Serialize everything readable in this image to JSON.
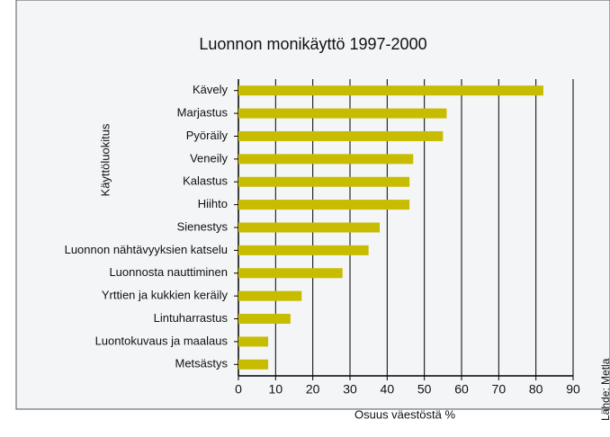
{
  "chart_data": {
    "type": "hbar",
    "title": "Luonnon monikäyttö 1997-2000",
    "x_label": "Osuus väestöstä %",
    "y_label": "Käyttöluokitus",
    "source": "Lähde: Metla",
    "categories": [
      "Kävely",
      "Marjastus",
      "Pyöräily",
      "Veneily",
      "Kalastus",
      "Hiihto",
      "Sienestys",
      "Luonnon nähtävyyksien katselu",
      "Luonnosta nauttiminen",
      "Yrttien ja kukkien keräily",
      "Lintuharrastus",
      "Luontokuvaus ja maalaus",
      "Metsästys"
    ],
    "values": [
      82,
      56,
      55,
      47,
      46,
      46,
      38,
      35,
      28,
      17,
      14,
      8,
      8
    ],
    "color": "#c8bc00",
    "xlim": [
      0,
      90
    ],
    "xticks": [
      0,
      10,
      20,
      30,
      40,
      50,
      60,
      70,
      80,
      90
    ],
    "grid": true
  }
}
